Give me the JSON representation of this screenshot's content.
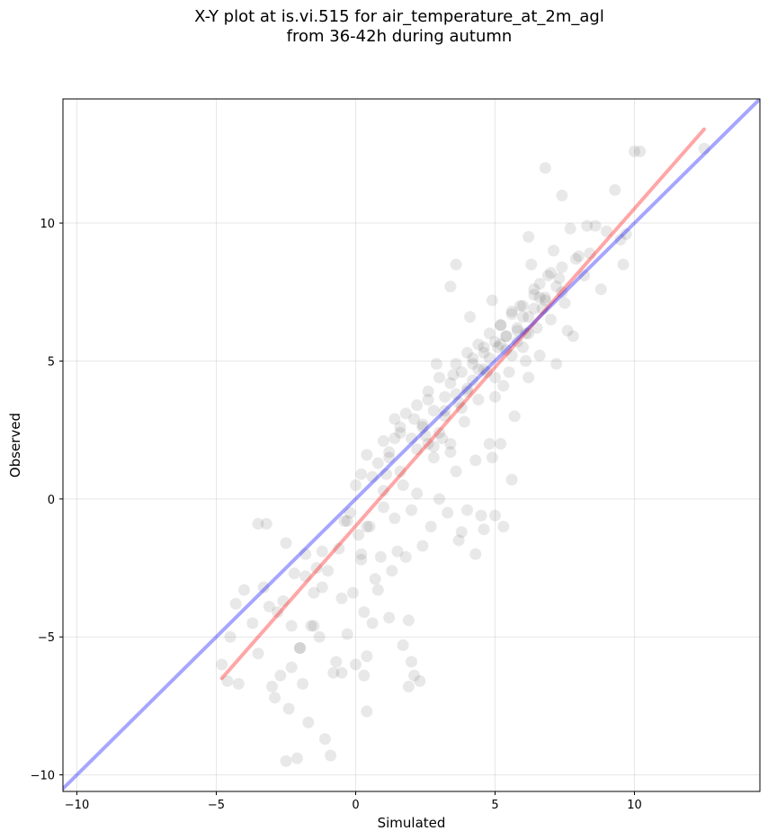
{
  "title_line1": "X-Y plot at is.vi.515 for air_temperature_at_2m_agl",
  "title_line2": "from 36-42h during autumn",
  "chart_data": {
    "type": "scatter",
    "xlabel": "Simulated",
    "ylabel": "Observed",
    "xlim": [
      -10.5,
      14.5
    ],
    "ylim": [
      -10.6,
      14.5
    ],
    "xticks": [
      -10,
      -5,
      0,
      5,
      10
    ],
    "yticks": [
      -10,
      -5,
      0,
      5,
      10
    ],
    "xtick_labels": [
      "−10",
      "−5",
      "0",
      "5",
      "10"
    ],
    "ytick_labels": [
      "−10",
      "−5",
      "0",
      "5",
      "10"
    ],
    "grid": true,
    "point_color": "#000000",
    "point_alpha": 0.09,
    "series": [
      {
        "x": [
          -4.8,
          -4.6,
          -4.5,
          -4.3,
          -4.2,
          -4.0,
          -3.7,
          -3.5,
          -3.3,
          -3.2,
          -3.1,
          -3.0,
          -2.9,
          -2.8,
          -2.7,
          -2.6,
          -2.5,
          -2.4,
          -2.3,
          -2.2,
          -2.1,
          -2.0,
          -1.9,
          -1.8,
          -1.7,
          -1.6,
          -1.5,
          -1.4,
          -1.3,
          -1.2,
          -1.1,
          -1.0,
          -0.9,
          -0.8,
          -0.7,
          -0.6,
          -0.5,
          -0.4,
          -0.3,
          -0.2,
          -0.1,
          0.0,
          0.1,
          0.2,
          0.3,
          0.4,
          0.5,
          0.6,
          0.7,
          0.8,
          0.9,
          1.0,
          1.1,
          1.2,
          1.3,
          1.4,
          1.5,
          1.6,
          1.7,
          1.8,
          1.9,
          2.0,
          2.1,
          2.2,
          2.3,
          2.4,
          2.5,
          2.6,
          2.7,
          2.8,
          2.9,
          3.0,
          3.1,
          3.2,
          3.3,
          3.4,
          3.5,
          3.6,
          3.7,
          3.8,
          3.9,
          4.0,
          4.1,
          4.2,
          4.3,
          4.4,
          4.5,
          4.6,
          4.7,
          4.8,
          4.9,
          5.0,
          5.1,
          5.2,
          5.3,
          5.4,
          5.5,
          5.6,
          5.7,
          5.8,
          5.9,
          6.0,
          6.1,
          6.2,
          6.3,
          6.4,
          6.5,
          6.6,
          6.7,
          6.8,
          6.9,
          7.0,
          7.1,
          7.2,
          7.3,
          7.4,
          7.5,
          7.6,
          7.7,
          7.8,
          7.9,
          8.0,
          8.2,
          8.4,
          8.6,
          8.8,
          9.0,
          9.3,
          9.6,
          10.0,
          10.2,
          12.5,
          -3.5,
          -2.5,
          -2.3,
          -2.0,
          -1.8,
          -1.5,
          -1.2,
          -0.5,
          0.3,
          0.4,
          1.7,
          1.9,
          2.0,
          2.1,
          0.2,
          0.4,
          -0.3,
          3.7,
          4.0,
          4.3,
          4.6,
          5.0,
          5.3,
          5.6,
          3.4,
          3.6,
          6.8,
          6.2,
          7.4,
          8.3,
          9.7,
          9.5,
          6.1,
          5.2,
          4.9,
          1.0,
          1.2,
          1.4,
          1.6,
          2.2,
          2.4,
          2.6,
          2.8,
          3.0,
          3.2,
          3.4,
          3.6,
          3.8,
          4.0,
          4.2,
          4.4,
          4.6,
          4.8,
          5.0,
          5.2,
          5.4,
          5.6,
          5.8,
          6.0,
          6.2,
          6.4,
          6.6,
          0.0,
          0.2,
          0.4,
          0.6,
          0.8,
          1.0,
          1.2,
          1.4,
          1.6,
          1.8,
          2.0,
          2.2,
          2.4,
          2.6,
          2.8,
          3.0,
          3.2,
          3.4,
          3.6,
          3.8,
          4.0,
          4.2,
          4.4,
          4.6,
          4.8,
          5.0,
          5.2,
          5.4,
          5.6,
          5.8,
          6.0,
          6.2,
          6.4,
          6.6,
          6.8,
          7.0,
          7.2,
          7.4
        ],
        "y": [
          -6.0,
          -6.6,
          -5.0,
          -3.8,
          -6.7,
          -3.3,
          -4.5,
          -5.6,
          -3.2,
          -0.9,
          -3.9,
          -6.8,
          -7.2,
          -4.1,
          -6.4,
          -3.7,
          -1.6,
          -7.6,
          -4.6,
          -2.7,
          -9.4,
          -5.4,
          -6.7,
          -2.0,
          -8.1,
          -4.6,
          -3.4,
          -2.5,
          -5.0,
          -1.9,
          -8.7,
          -2.6,
          -9.3,
          -6.3,
          -5.9,
          -1.8,
          -3.6,
          -0.8,
          -4.9,
          -0.5,
          -3.4,
          -6.0,
          -1.3,
          -2.2,
          -6.4,
          -7.7,
          -1.0,
          -4.5,
          -2.9,
          -3.3,
          -2.1,
          -0.3,
          0.9,
          -4.3,
          -2.6,
          -0.7,
          -1.9,
          2.6,
          0.5,
          -2.1,
          -4.4,
          -0.4,
          2.9,
          0.2,
          -6.6,
          -1.7,
          2.3,
          3.6,
          -1.0,
          1.9,
          4.9,
          0.0,
          2.2,
          3.2,
          -0.5,
          1.7,
          4.5,
          1.0,
          3.5,
          -1.2,
          2.8,
          3.9,
          6.6,
          5.1,
          1.4,
          4.7,
          -0.6,
          5.5,
          4.6,
          2.0,
          7.2,
          3.7,
          5.5,
          6.3,
          4.1,
          5.9,
          4.6,
          6.8,
          3.0,
          5.7,
          7.0,
          5.5,
          6.0,
          4.4,
          8.5,
          7.6,
          6.2,
          5.2,
          6.9,
          7.3,
          8.1,
          6.5,
          9.0,
          4.9,
          8.0,
          7.5,
          7.1,
          6.1,
          9.8,
          5.9,
          8.7,
          8.8,
          8.1,
          8.9,
          9.9,
          7.6,
          9.7,
          11.2,
          8.5,
          12.6,
          12.6,
          12.7,
          -0.9,
          -9.5,
          -6.1,
          -5.4,
          -2.8,
          -4.6,
          -3.2,
          -6.3,
          -4.1,
          -5.7,
          -5.3,
          -6.8,
          -5.9,
          -6.4,
          -2.0,
          -1.0,
          -0.8,
          -1.5,
          -0.4,
          -2.0,
          -1.1,
          -0.6,
          -1.0,
          0.7,
          7.7,
          8.5,
          12.0,
          9.5,
          11.0,
          9.9,
          9.6,
          9.4,
          5.0,
          2.0,
          1.5,
          0.3,
          1.5,
          2.2,
          1.0,
          1.8,
          2.6,
          2.0,
          1.5,
          2.4,
          3.0,
          2.0,
          3.8,
          3.3,
          4.0,
          4.3,
          3.6,
          4.7,
          5.1,
          4.4,
          5.6,
          5.9,
          5.2,
          6.2,
          6.6,
          6.0,
          6.9,
          7.3,
          0.5,
          0.9,
          1.6,
          0.8,
          1.3,
          2.1,
          1.7,
          2.9,
          2.4,
          3.1,
          2.2,
          3.4,
          2.7,
          3.9,
          3.2,
          4.4,
          3.7,
          4.2,
          4.9,
          4.6,
          5.3,
          4.9,
          5.6,
          5.3,
          6.0,
          5.7,
          6.3,
          5.4,
          6.7,
          6.1,
          7.0,
          6.6,
          7.4,
          7.8,
          7.2,
          8.2,
          7.7,
          8.4
        ]
      }
    ],
    "lines": [
      {
        "name": "regression",
        "color": "#ff0000",
        "alpha": 0.35,
        "x": [
          -4.8,
          12.5
        ],
        "y": [
          -6.5,
          13.4
        ]
      },
      {
        "name": "one-to-one",
        "color": "#0000ff",
        "alpha": 0.35,
        "x": [
          -10.6,
          14.5
        ],
        "y": [
          -10.6,
          14.5
        ]
      }
    ]
  }
}
